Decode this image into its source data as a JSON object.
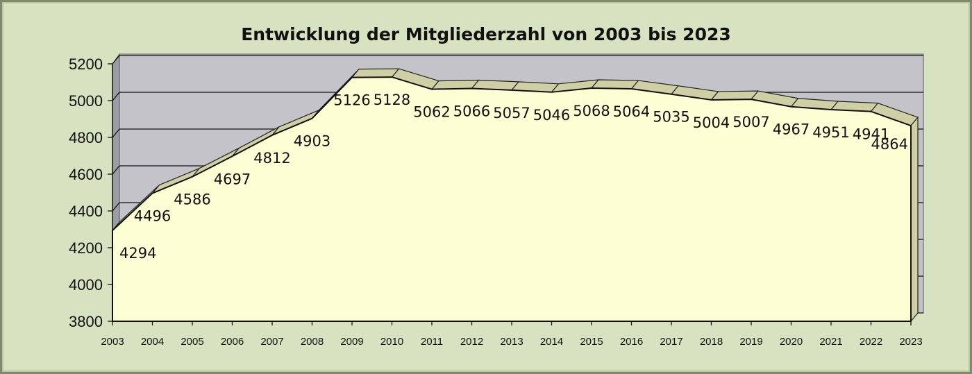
{
  "chart_data": {
    "type": "area",
    "title": "Entwicklung der Mitgliederzahl von 2003 bis 2023",
    "xlabel": "",
    "ylabel": "",
    "categories": [
      "2003",
      "2004",
      "2005",
      "2006",
      "2007",
      "2008",
      "2009",
      "2010",
      "2011",
      "2012",
      "2013",
      "2014",
      "2015",
      "2016",
      "2017",
      "2018",
      "2019",
      "2020",
      "2021",
      "2022",
      "2023"
    ],
    "values": [
      4294,
      4496,
      4586,
      4697,
      4812,
      4903,
      5126,
      5128,
      5062,
      5066,
      5057,
      5046,
      5068,
      5064,
      5035,
      5004,
      5007,
      4967,
      4951,
      4941,
      4864
    ],
    "ylim": [
      3800,
      5200
    ],
    "yticks": [
      3800,
      4000,
      4200,
      4400,
      4600,
      4800,
      5000,
      5200
    ],
    "grid": true,
    "legend": "none",
    "colors": {
      "background": "#d7e2c1",
      "wall": "#c3c3c9",
      "wall_side": "#9c9ca6",
      "area_fill": "#fefed4",
      "area_top": "#cfcfa6",
      "area_side": "#cfcfa6",
      "gridline": "#111111"
    }
  }
}
